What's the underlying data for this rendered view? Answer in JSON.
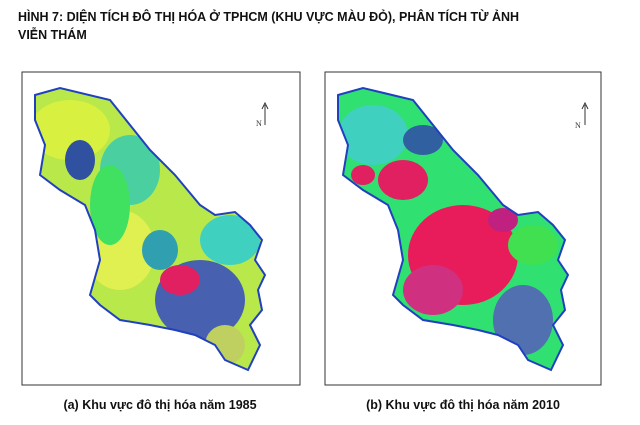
{
  "header": {
    "title_lines": [
      "HÌNH 7: DIỆN TÍCH ĐÔ THỊ HÓA Ở TPHCM (KHU VỰC MÀU ĐỎ), PHÂN TÍCH TỪ ẢNH",
      "VIỄN THÁM"
    ]
  },
  "panels": [
    {
      "north": "N",
      "caption": "(a)  Khu vực đô thị hóa năm 1985"
    },
    {
      "north": "N",
      "caption": "(b)  Khu vực đô thị hóa năm 2010"
    }
  ]
}
